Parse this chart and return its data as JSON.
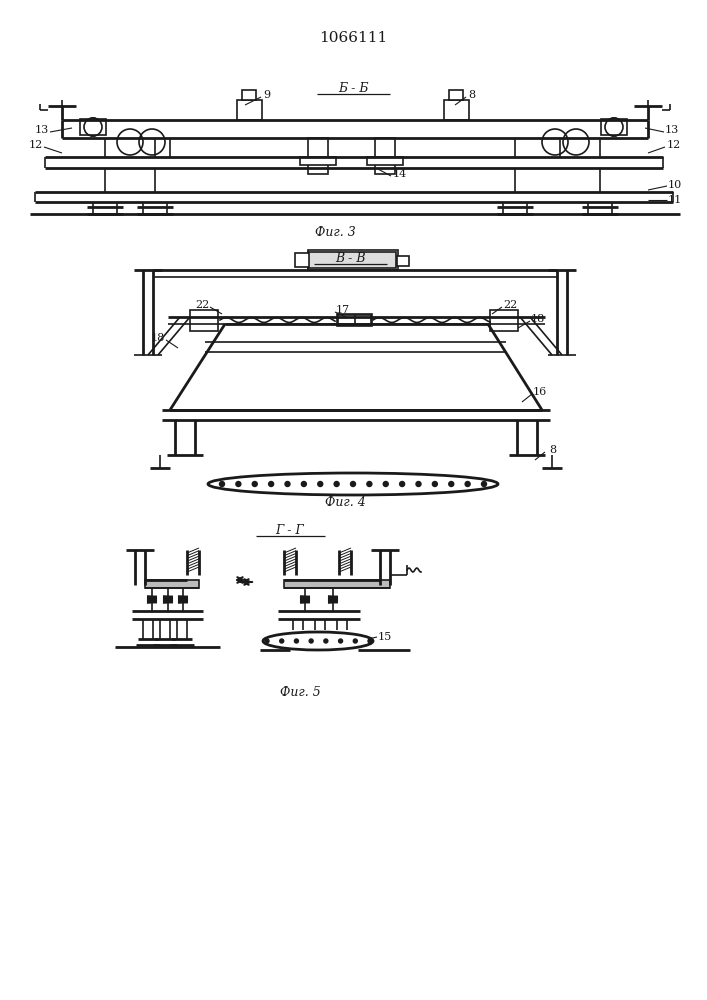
{
  "title": "1066111",
  "fig3_label": "Б - Б",
  "fig4_label": "В - В",
  "fig5_label": "Г - Г",
  "caption3": "Фиг. 3",
  "caption4": "Фиг. 4",
  "caption5": "Фиг. 5",
  "line_color": "#1a1a1a",
  "bg_color": "#ffffff",
  "lw": 1.2,
  "lw2": 2.0
}
